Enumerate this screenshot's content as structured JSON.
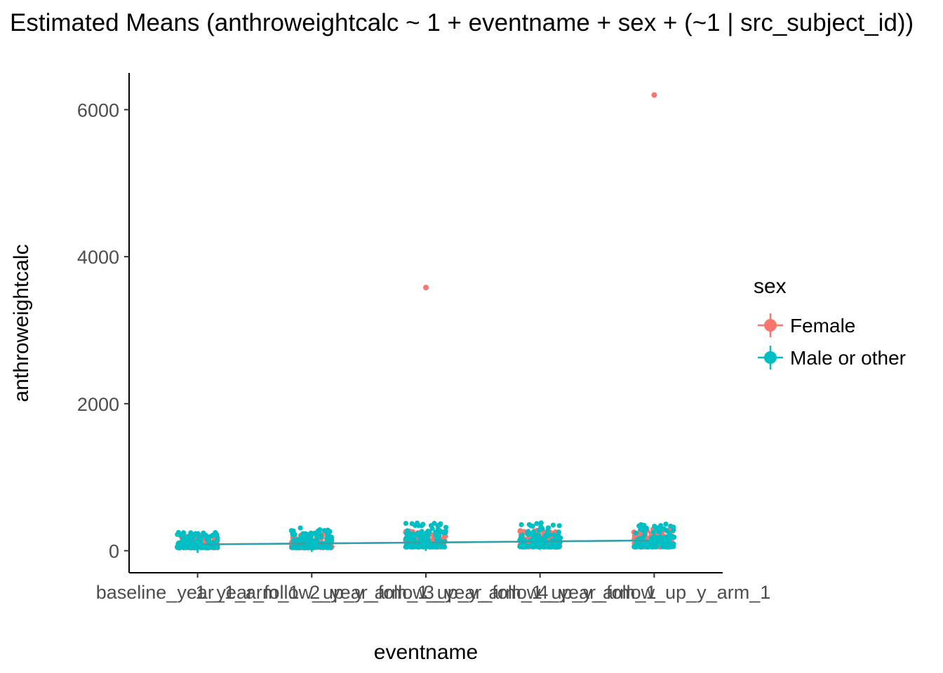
{
  "chart_data": {
    "type": "scatter",
    "title": "Estimated Means (anthroweightcalc ~ 1 + eventname + sex + (~1 | src_subject_id))",
    "xlabel": "eventname",
    "ylabel": "anthroweightcalc",
    "categories": [
      "baseline_year_1_arm_1",
      "1_year_follow_up_y_arm_1",
      "2_year_follow_up_y_arm_1",
      "3_year_follow_up_y_arm_1",
      "4_year_follow_up_y_arm_1"
    ],
    "ylim": [
      -300,
      6500
    ],
    "yticks": [
      0,
      2000,
      4000,
      6000
    ],
    "grid": false,
    "legend": {
      "title": "sex",
      "position": "right",
      "entries": [
        "Female",
        "Male or other"
      ]
    },
    "colors": {
      "Female": "#F8766D",
      "Male or other": "#00BFC4",
      "line": "#2AA3AE"
    },
    "series": [
      {
        "name": "Female",
        "estimated_means": [
          85,
          98,
          111,
          125,
          140
        ]
      },
      {
        "name": "Male or other",
        "estimated_means": [
          85,
          98,
          111,
          125,
          140
        ]
      }
    ],
    "raw_points": {
      "spread": {
        "Female": [
          [
            40,
            220
          ],
          [
            40,
            240
          ],
          [
            50,
            270
          ],
          [
            50,
            280
          ],
          [
            50,
            300
          ]
        ],
        "Male or other": [
          [
            40,
            250
          ],
          [
            40,
            310
          ],
          [
            50,
            380
          ],
          [
            50,
            380
          ],
          [
            50,
            370
          ]
        ]
      },
      "outliers": [
        {
          "series": "Female",
          "category": "2_year_follow_up_y_arm_1",
          "value": 3580
        },
        {
          "series": "Female",
          "category": "4_year_follow_up_y_arm_1",
          "value": 6200
        }
      ]
    }
  }
}
